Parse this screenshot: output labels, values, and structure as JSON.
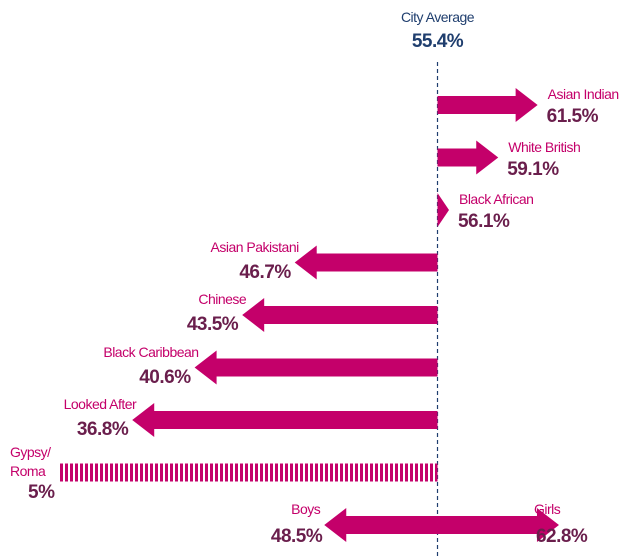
{
  "chart_data": {
    "type": "diverging-arrow",
    "reference": {
      "label": "City Average",
      "value": 55.4,
      "value_label": "55.4%"
    },
    "categories": [
      "Asian Indian",
      "White British",
      "Black African",
      "Asian Pakistani",
      "Chinese",
      "Black Caribbean",
      "Looked After",
      "Gypsy/\nRoma",
      "Boys",
      "Girls"
    ],
    "values": [
      61.5,
      59.1,
      56.1,
      46.7,
      43.5,
      40.6,
      36.8,
      5,
      48.5,
      62.8
    ],
    "value_labels": [
      "61.5%",
      "59.1%",
      "56.1%",
      "46.7%",
      "43.5%",
      "40.6%",
      "36.8%",
      "5%",
      "48.5%",
      "62.8%"
    ],
    "xlim": [
      32.4,
      65.3
    ],
    "color": "#c4006a"
  }
}
